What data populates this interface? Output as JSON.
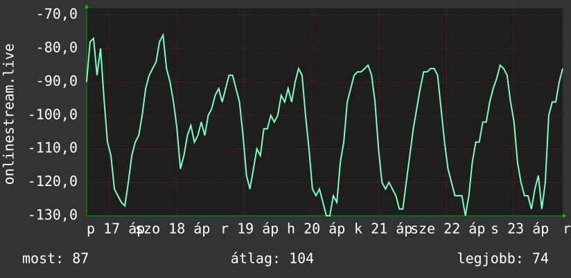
{
  "chart_data": {
    "type": "line",
    "y_label": "onlinestream.live",
    "x_labels": [
      "p 17 áp",
      "szo 18 áp",
      "r 19 áp",
      "h 20 áp",
      "k 21 áp",
      "sze 22 áp",
      "s 23 áp",
      "r"
    ],
    "series": [
      {
        "color": "#7fffbf",
        "values": [
          -90,
          -78,
          -77,
          -88,
          -80,
          -95,
          -108,
          -112,
          -122,
          -124,
          -126,
          -127,
          -120,
          -112,
          -108,
          -106,
          -100,
          -92,
          -88,
          -86,
          -84,
          -78,
          -76,
          -86,
          -90,
          -96,
          -104,
          -116,
          -112,
          -106,
          -103,
          -108,
          -106,
          -102,
          -106,
          -100,
          -98,
          -94,
          -92,
          -96,
          -92,
          -88,
          -88,
          -92,
          -96,
          -106,
          -118,
          -122,
          -116,
          -110,
          -112,
          -104,
          -104,
          -100,
          -102,
          -100,
          -94,
          -96,
          -92,
          -96,
          -90,
          -86,
          -88,
          -100,
          -110,
          -122,
          -124,
          -122,
          -126,
          -130,
          -130,
          -124,
          -126,
          -114,
          -108,
          -96,
          -92,
          -88,
          -87,
          -87,
          -86,
          -85,
          -88,
          -96,
          -110,
          -120,
          -122,
          -120,
          -122,
          -124,
          -128,
          -128,
          -120,
          -112,
          -104,
          -98,
          -92,
          -87,
          -87,
          -86,
          -86,
          -88,
          -98,
          -108,
          -116,
          -120,
          -124,
          -124,
          -124,
          -130,
          -124,
          -114,
          -108,
          -108,
          -102,
          -102,
          -96,
          -92,
          -89,
          -85,
          -86,
          -88,
          -96,
          -102,
          -114,
          -120,
          -124,
          -124,
          -128,
          -122,
          -118,
          -128,
          -120,
          -100,
          -96,
          -96,
          -90,
          -86
        ]
      }
    ],
    "ylim": [
      -130,
      -68
    ],
    "yticks": [
      {
        "value": -70,
        "label": "-70,0"
      },
      {
        "value": -80,
        "label": "-80,0"
      },
      {
        "value": -90,
        "label": "-90,0"
      },
      {
        "value": -100,
        "label": "-100,0"
      },
      {
        "value": -110,
        "label": "-110,0"
      },
      {
        "value": -120,
        "label": "-120,0"
      },
      {
        "value": -130,
        "label": "-130,0"
      }
    ],
    "grid": true,
    "footer": [
      "most: 87",
      "átlag: 104",
      "legjobb: 74"
    ]
  }
}
